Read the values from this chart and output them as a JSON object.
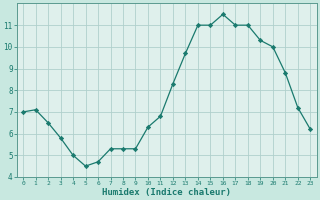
{
  "x": [
    0,
    1,
    2,
    3,
    4,
    5,
    6,
    7,
    8,
    9,
    10,
    11,
    12,
    13,
    14,
    15,
    16,
    17,
    18,
    19,
    20,
    21,
    22,
    23
  ],
  "y": [
    7.0,
    7.1,
    6.5,
    5.8,
    5.0,
    4.5,
    4.7,
    5.3,
    5.3,
    5.3,
    6.3,
    6.8,
    8.3,
    9.7,
    11.0,
    11.0,
    11.5,
    11.0,
    11.0,
    10.3,
    10.0,
    8.8,
    7.2,
    6.2
  ],
  "xlabel": "Humidex (Indice chaleur)",
  "ylim": [
    4,
    12
  ],
  "xlim": [
    -0.5,
    23.5
  ],
  "yticks": [
    4,
    5,
    6,
    7,
    8,
    9,
    10,
    11
  ],
  "xticks": [
    0,
    1,
    2,
    3,
    4,
    5,
    6,
    7,
    8,
    9,
    10,
    11,
    12,
    13,
    14,
    15,
    16,
    17,
    18,
    19,
    20,
    21,
    22,
    23
  ],
  "line_color": "#1a7a6e",
  "marker_color": "#1a7a6e",
  "bg_color": "#c8e8e0",
  "grid_color_major": "#b0d0cc",
  "grid_color_minor": "#d4e8e4",
  "plot_area_bg": "#dff0ec",
  "tick_label_color": "#1a7a6e",
  "xlabel_color": "#1a7a6e"
}
